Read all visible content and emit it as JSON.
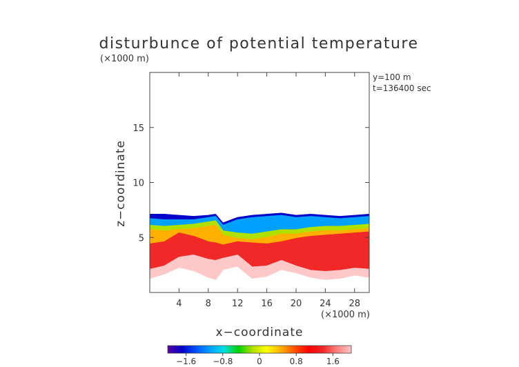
{
  "chart_data": {
    "type": "heatmap",
    "title": "disturbunce of potential temperature",
    "xlabel": "x−coordinate",
    "ylabel": "z−coordinate",
    "x_unit": "(×1000 m)",
    "y_unit": "(×1000 m)",
    "annotations": [
      "y=100 m",
      "t=136400 sec"
    ],
    "xlim": [
      0,
      30
    ],
    "ylim": [
      0,
      20
    ],
    "xticks": [
      4,
      8,
      12,
      16,
      20,
      24,
      28
    ],
    "yticks": [
      5,
      10,
      15
    ],
    "colorbar": {
      "range": [
        -2.0,
        2.0
      ],
      "ticks": [
        -1.6,
        -0.8,
        0,
        0.8,
        1.6
      ],
      "tick_labels": [
        "−1.6",
        "−0.8",
        "0",
        "0.8",
        "1.6"
      ],
      "colors": [
        "#5a00a0",
        "#0000c8",
        "#0050ff",
        "#00a0ff",
        "#00e0e0",
        "#00d000",
        "#b0e000",
        "#ffff00",
        "#ffb000",
        "#ff5000",
        "#ff0000",
        "#f02828",
        "#ff8080",
        "#ffc8c8"
      ]
    },
    "field": {
      "description_rows": "approximate contour bands along x",
      "x": [
        0,
        2,
        4,
        6,
        8,
        9,
        10,
        12,
        14,
        16,
        18,
        20,
        22,
        24,
        26,
        28,
        30
      ],
      "top_of_layer": [
        7.1,
        7.1,
        7.0,
        6.9,
        7.0,
        7.1,
        6.3,
        6.8,
        7.0,
        7.1,
        7.2,
        7.0,
        7.1,
        7.0,
        6.9,
        7.0,
        7.1
      ],
      "bottom_of_layer": [
        1.3,
        1.7,
        2.3,
        2.0,
        1.4,
        1.2,
        2.1,
        2.4,
        1.3,
        1.5,
        2.1,
        1.8,
        1.4,
        1.2,
        1.3,
        1.6,
        1.4
      ],
      "levels": [
        {
          "value": -1.6,
          "top": [
            7.1,
            7.1,
            7.0,
            6.9,
            7.0,
            7.1,
            6.3,
            6.8,
            7.0,
            7.1,
            7.2,
            7.0,
            7.1,
            7.0,
            6.9,
            7.0,
            7.1
          ],
          "bottom": [
            6.7,
            6.6,
            6.6,
            6.6,
            6.8,
            6.9,
            6.1,
            6.6,
            6.8,
            6.9,
            7.0,
            6.8,
            6.9,
            6.8,
            6.7,
            6.8,
            6.9
          ]
        },
        {
          "value": -1.0,
          "top": [
            6.7,
            6.6,
            6.6,
            6.6,
            6.8,
            6.9,
            6.1,
            6.6,
            6.8,
            6.9,
            7.0,
            6.8,
            6.9,
            6.8,
            6.7,
            6.8,
            6.9
          ],
          "bottom": [
            6.1,
            6.0,
            6.1,
            6.2,
            6.4,
            6.5,
            5.6,
            5.4,
            5.3,
            5.5,
            5.7,
            5.7,
            5.9,
            6.0,
            6.0,
            6.1,
            6.2
          ]
        },
        {
          "value": -0.3,
          "top": [
            6.1,
            6.0,
            6.1,
            6.2,
            6.4,
            6.5,
            5.6,
            5.4,
            5.3,
            5.5,
            5.7,
            5.7,
            5.9,
            6.0,
            6.0,
            6.1,
            6.2
          ],
          "bottom": [
            5.7,
            5.6,
            5.7,
            5.8,
            6.0,
            6.1,
            5.2,
            4.9,
            4.8,
            5.0,
            5.3,
            5.3,
            5.5,
            5.6,
            5.6,
            5.7,
            5.8
          ]
        },
        {
          "value": 0.5,
          "top": [
            5.7,
            5.6,
            5.7,
            5.8,
            6.0,
            6.1,
            5.2,
            4.9,
            4.8,
            5.0,
            5.3,
            5.3,
            5.5,
            5.6,
            5.6,
            5.7,
            5.8
          ],
          "bottom": [
            4.4,
            4.6,
            5.4,
            5.1,
            4.6,
            4.5,
            4.3,
            4.6,
            4.5,
            4.4,
            4.6,
            4.9,
            5.1,
            5.2,
            5.3,
            5.4,
            5.5
          ]
        },
        {
          "value": 1.3,
          "top": [
            4.4,
            4.6,
            5.4,
            5.1,
            4.6,
            4.5,
            4.3,
            4.6,
            4.5,
            4.4,
            4.6,
            4.9,
            5.1,
            5.2,
            5.3,
            5.4,
            5.5
          ],
          "bottom": [
            2.1,
            2.4,
            3.2,
            3.4,
            3.0,
            2.9,
            3.1,
            3.4,
            2.3,
            2.4,
            2.9,
            2.4,
            2.0,
            1.9,
            2.0,
            2.2,
            2.1
          ]
        },
        {
          "value": 1.9,
          "top": [
            2.1,
            2.4,
            3.2,
            3.4,
            3.0,
            2.9,
            3.1,
            3.4,
            2.3,
            2.4,
            2.9,
            2.4,
            2.0,
            1.9,
            2.0,
            2.2,
            2.1
          ],
          "bottom": [
            1.3,
            1.7,
            2.3,
            2.0,
            1.4,
            1.2,
            2.1,
            2.4,
            1.3,
            1.5,
            2.1,
            1.8,
            1.4,
            1.2,
            1.3,
            1.6,
            1.4
          ]
        }
      ]
    }
  }
}
